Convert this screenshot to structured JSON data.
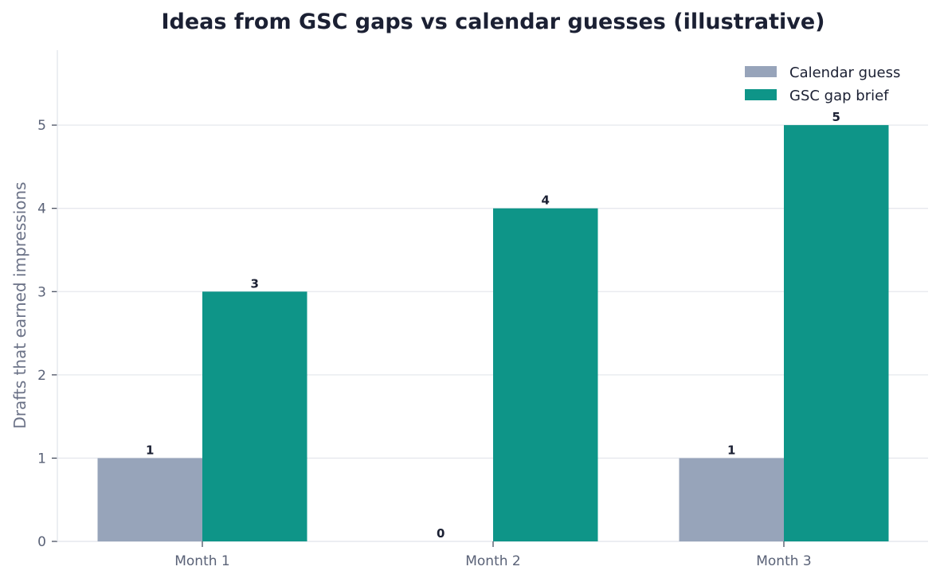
{
  "chart_data": {
    "type": "bar",
    "title": "Ideas from GSC gaps vs calendar guesses (illustrative)",
    "xlabel": "",
    "ylabel": "Drafts that earned impressions",
    "categories": [
      "Month 1",
      "Month 2",
      "Month 3"
    ],
    "series": [
      {
        "name": "Calendar guess",
        "values": [
          1,
          0,
          1
        ],
        "color": "#97a4ba"
      },
      {
        "name": "GSC gap brief",
        "values": [
          3,
          4,
          5
        ],
        "color": "#0e9588"
      }
    ],
    "ylim": [
      0,
      5.9
    ],
    "yticks": [
      0,
      1,
      2,
      3,
      4,
      5
    ],
    "grid": true,
    "legend_position": "top-right"
  }
}
